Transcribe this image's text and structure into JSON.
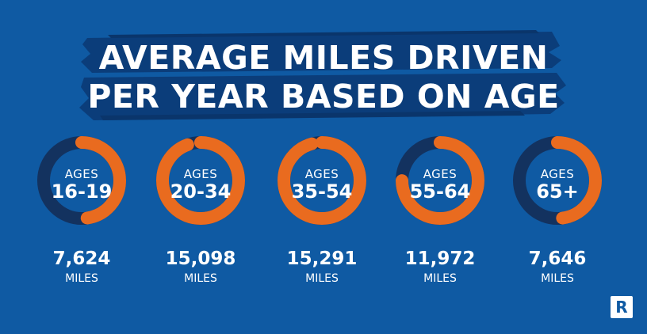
{
  "title_line1": "AVERAGE MILES DRIVEN",
  "title_line2": "PER YEAR BASED ON AGE",
  "colors": {
    "background": "#0f5aa3",
    "brush": "#0b3d7a",
    "ring_track": "#13325f",
    "ring_fill": "#e96b1f",
    "text": "#ffffff"
  },
  "logo_icon": "ramsey-r-logo-icon",
  "chart_data": {
    "type": "donut",
    "title": "AVERAGE MILES DRIVEN PER YEAR BASED ON AGE",
    "max_reference": 16000,
    "items": [
      {
        "ages_label": "AGES",
        "range": "16-19",
        "miles": "7,624",
        "unit": "MILES",
        "value": 7624
      },
      {
        "ages_label": "AGES",
        "range": "20-34",
        "miles": "15,098",
        "unit": "MILES",
        "value": 15098
      },
      {
        "ages_label": "AGES",
        "range": "35-54",
        "miles": "15,291",
        "unit": "MILES",
        "value": 15291
      },
      {
        "ages_label": "AGES",
        "range": "55-64",
        "miles": "11,972",
        "unit": "MILES",
        "value": 11972
      },
      {
        "ages_label": "AGES",
        "range": "65+",
        "miles": "7,646",
        "unit": "MILES",
        "value": 7646
      }
    ]
  }
}
